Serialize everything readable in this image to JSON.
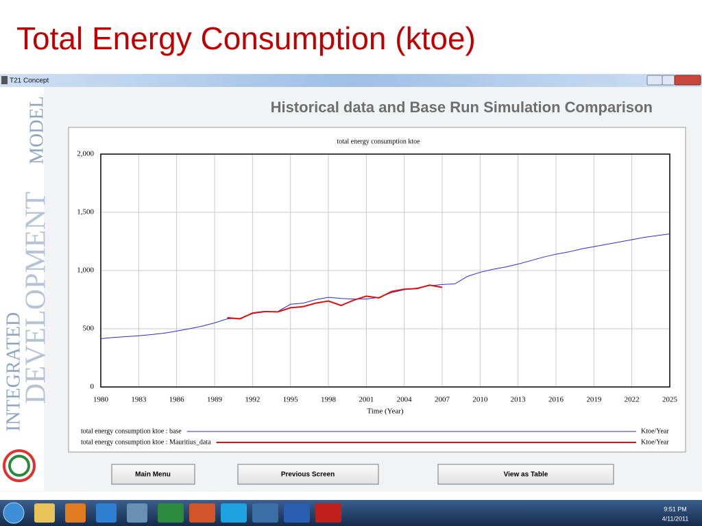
{
  "slide_title": "Total Energy Consumption (ktoe)",
  "window_title": "T21 Concept",
  "panel_heading": "Historical data and Base Run Simulation Comparison",
  "sidebar": [
    "INTEGRATED",
    "DEVELOPMENT",
    "MODEL"
  ],
  "chart_data": {
    "type": "line",
    "title": "total energy consumption ktoe",
    "xlabel": "Time (Year)",
    "units": "Ktoe/Year",
    "x": [
      1980,
      1981,
      1982,
      1983,
      1984,
      1985,
      1986,
      1987,
      1988,
      1989,
      1990,
      1991,
      1992,
      1993,
      1994,
      1995,
      1996,
      1997,
      1998,
      1999,
      2000,
      2001,
      2002,
      2003,
      2004,
      2005,
      2006,
      2007,
      2008,
      2009,
      2010,
      2011,
      2012,
      2013,
      2014,
      2015,
      2016,
      2017,
      2018,
      2019,
      2020,
      2021,
      2022,
      2023,
      2024,
      2025
    ],
    "series": [
      {
        "name": "total energy consumption ktoe : base",
        "color": "#2a2ad8",
        "values": [
          415,
          425,
          432,
          440,
          450,
          462,
          480,
          500,
          522,
          550,
          585,
          590,
          630,
          645,
          648,
          710,
          720,
          750,
          770,
          760,
          755,
          755,
          770,
          810,
          835,
          850,
          870,
          880,
          885,
          950,
          985,
          1010,
          1030,
          1055,
          1085,
          1115,
          1140,
          1160,
          1185,
          1205,
          1225,
          1245,
          1265,
          1285,
          1300,
          1315
        ]
      },
      {
        "name": "total energy consumption ktoe : Mauritius_data",
        "color": "#e01010",
        "values": [
          null,
          null,
          null,
          null,
          null,
          null,
          null,
          null,
          null,
          null,
          595,
          585,
          635,
          648,
          645,
          680,
          690,
          720,
          738,
          700,
          745,
          780,
          765,
          820,
          840,
          845,
          875,
          855,
          null,
          null,
          null,
          null,
          null,
          null,
          null,
          null,
          null,
          null,
          null,
          null,
          null,
          null,
          null,
          null,
          null,
          null
        ]
      }
    ],
    "xlim": [
      1980,
      2025
    ],
    "xticks": [
      1980,
      1983,
      1986,
      1989,
      1992,
      1995,
      1998,
      2001,
      2004,
      2007,
      2010,
      2013,
      2016,
      2019,
      2022,
      2025
    ],
    "ylim": [
      0,
      2000
    ],
    "yticks": [
      0,
      500,
      {
        "value": 1000,
        "label": "1,000"
      },
      {
        "value": 1500,
        "label": "1,500"
      },
      {
        "value": 2000,
        "label": "2,000"
      }
    ],
    "grid": true
  },
  "buttons": [
    "Main Menu",
    "Previous Screen",
    "View as Table"
  ],
  "taskbar": {
    "time": "9:51 PM",
    "date": "4/11/2011"
  }
}
